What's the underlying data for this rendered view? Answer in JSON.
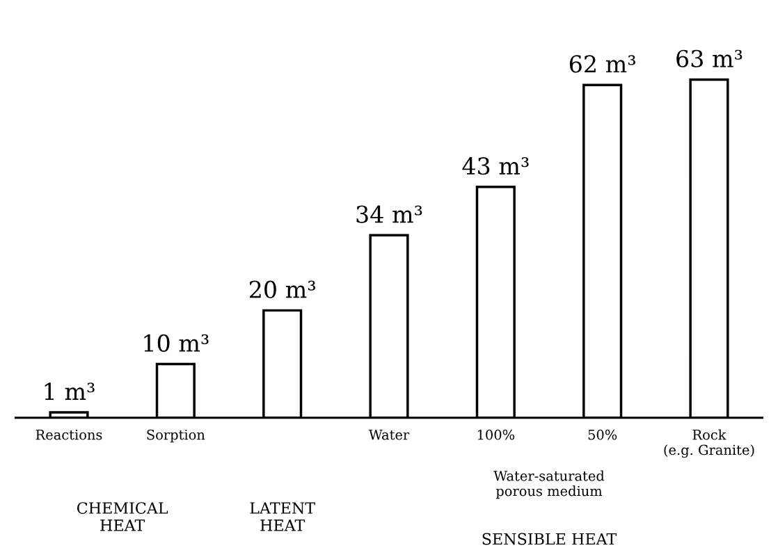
{
  "chart_data": {
    "type": "bar",
    "categories": [
      "Reactions",
      "Sorption",
      null,
      "Water",
      "100%",
      "50%",
      "Rock\n(e.g. Granite)"
    ],
    "values": [
      1,
      10,
      20,
      34,
      43,
      62,
      63
    ],
    "value_labels": [
      "1 m³",
      "10 m³",
      "20 m³",
      "34 m³",
      "43 m³",
      "62 m³",
      "63 m³"
    ],
    "color": "#ffffff",
    "annotations": [
      "Water-saturated\nporous medium",
      "CHEMICAL\nHEAT",
      "LATENT\nHEAT",
      "SENSIBLE HEAT"
    ],
    "grid": false
  }
}
